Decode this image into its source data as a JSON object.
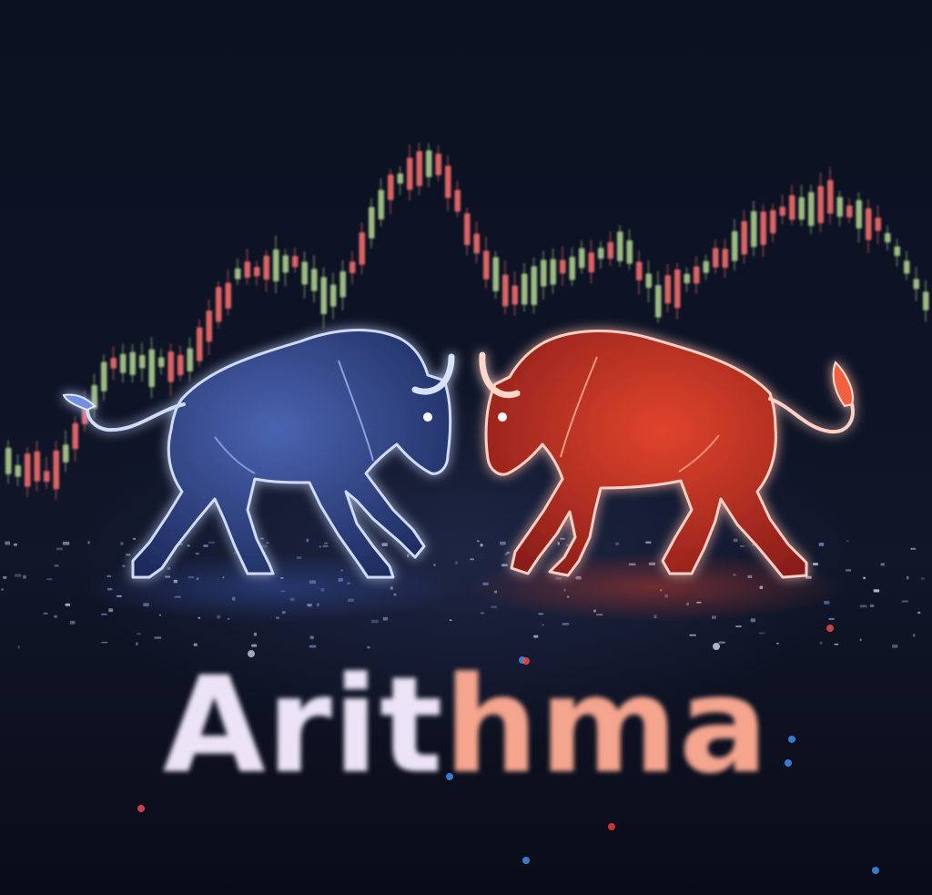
{
  "brand": {
    "part1": "Arit",
    "part2": "hma"
  },
  "colors": {
    "background": "#0c1020",
    "bull_blue": "#6f8fe0",
    "bull_red": "#f2603f",
    "candle_up": "#a9c98a",
    "candle_down": "#ee6b6b",
    "wordmark_light": "#ece4f6",
    "wordmark_accent": "#f5a58e"
  },
  "scene": {
    "subjects": [
      "blue-bull-figure",
      "red-bull-figure"
    ],
    "backdrop": "candlestick-price-chart"
  }
}
